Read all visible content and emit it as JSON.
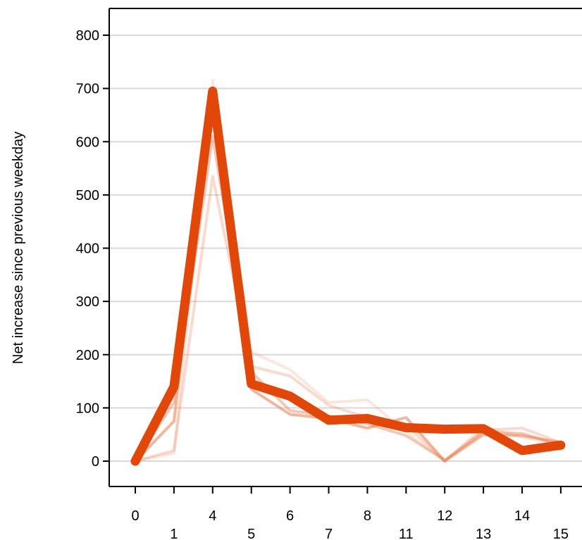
{
  "chart_data": {
    "type": "line",
    "title": "",
    "xlabel": "",
    "ylabel": "Net increase since previous weekday",
    "x": [
      "0",
      "1",
      "4",
      "5",
      "6",
      "7",
      "8",
      "11",
      "12",
      "13",
      "14",
      "15"
    ],
    "ylim": [
      -40,
      840
    ],
    "yticks": [
      0,
      100,
      200,
      300,
      400,
      500,
      600,
      700,
      800
    ],
    "grid": "horizontal",
    "legend": "none",
    "colors": {
      "highlight": "#e2470a",
      "background_series": "#e9855c",
      "gridline": "#d9d9d9",
      "axis": "#000000"
    },
    "series": [
      {
        "values": [
          0,
          15,
          715,
          205,
          172,
          110,
          115,
          55,
          0,
          65,
          45,
          32
        ],
        "opacity": 0.2,
        "width": 4
      },
      {
        "values": [
          0,
          20,
          535,
          178,
          160,
          105,
          82,
          68,
          0,
          58,
          62,
          35
        ],
        "opacity": 0.3,
        "width": 4
      },
      {
        "values": [
          0,
          110,
          610,
          168,
          95,
          85,
          70,
          48,
          2,
          55,
          52,
          30
        ],
        "opacity": 0.45,
        "width": 4
      },
      {
        "values": [
          0,
          75,
          700,
          135,
          88,
          80,
          62,
          82,
          0,
          50,
          48,
          35
        ],
        "opacity": 0.6,
        "width": 4
      },
      {
        "values": [
          0,
          140,
          695,
          145,
          122,
          77,
          80,
          63,
          60,
          61,
          20,
          30
        ],
        "opacity": 1.0,
        "width": 13,
        "highlight": true
      }
    ]
  }
}
